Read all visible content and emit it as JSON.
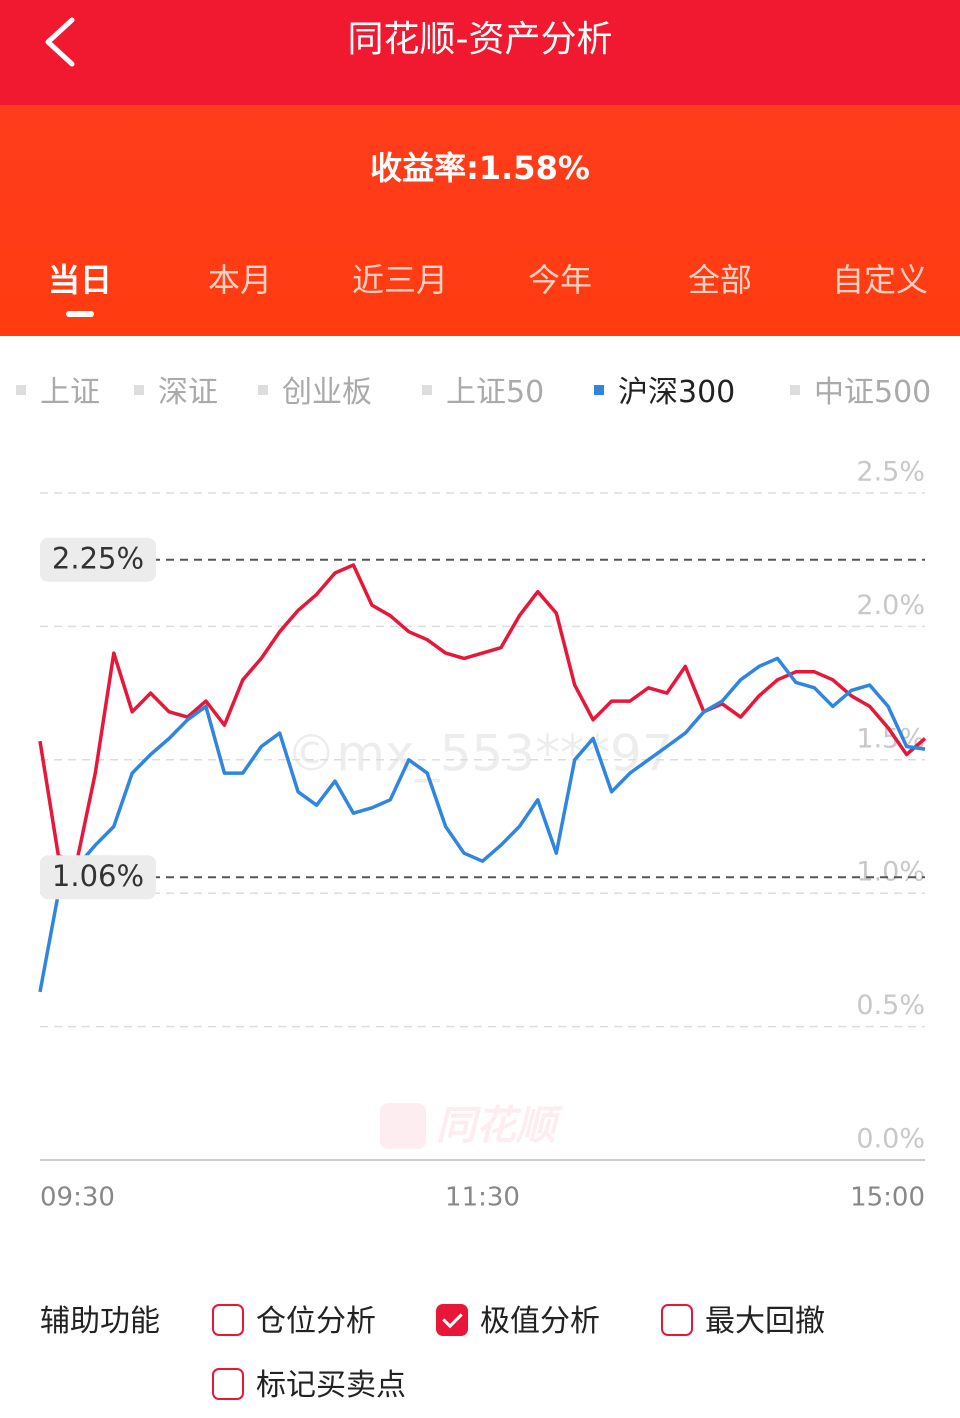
{
  "header": {
    "title": "同花顺-资产分析"
  },
  "summary": {
    "text": "收益率:1.58%"
  },
  "tabs": [
    "当日",
    "本月",
    "近三月",
    "今年",
    "全部",
    "自定义"
  ],
  "indices": [
    "上证",
    "深证",
    "创业板",
    "上证50",
    "沪深300",
    "中证500"
  ],
  "selected_index": 4,
  "chart_data": {
    "type": "line",
    "x": [
      0,
      5,
      10,
      15,
      20,
      25,
      30,
      35,
      40,
      45,
      50,
      55,
      60,
      65,
      70,
      75,
      80,
      85,
      90,
      95,
      100,
      105,
      110,
      115,
      120,
      125,
      130,
      135,
      140,
      145,
      150,
      155,
      160,
      165,
      170,
      175,
      180,
      185,
      190,
      195,
      200,
      205,
      210,
      215,
      220,
      225,
      230,
      235,
      240
    ],
    "xlim": [
      0,
      240
    ],
    "xticks": [
      {
        "value": 0,
        "label": "09:30"
      },
      {
        "value": 120,
        "label": "11:30"
      },
      {
        "value": 240,
        "label": "15:00"
      }
    ],
    "ylim": [
      0,
      2.5
    ],
    "yticks": [
      {
        "value": 0,
        "label": "0.0%"
      },
      {
        "value": 0.5,
        "label": "0.5%"
      },
      {
        "value": 1,
        "label": "1.0%"
      },
      {
        "value": 1.5,
        "label": "1.5%"
      },
      {
        "value": 2,
        "label": "2.0%"
      },
      {
        "value": 2.5,
        "label": "2.5%"
      }
    ],
    "grid": true,
    "series": [
      {
        "color": "#e8173a",
        "values": [
          1.57,
          1.14,
          1.12,
          1.45,
          1.9,
          1.68,
          1.75,
          1.68,
          1.66,
          1.72,
          1.63,
          1.8,
          1.88,
          1.98,
          2.06,
          2.12,
          2.2,
          2.23,
          2.08,
          2.04,
          1.98,
          1.95,
          1.9,
          1.88,
          1.9,
          1.92,
          2.04,
          2.13,
          2.05,
          1.78,
          1.65,
          1.72,
          1.72,
          1.77,
          1.75,
          1.85,
          1.68,
          1.71,
          1.66,
          1.74,
          1.8,
          1.83,
          1.83,
          1.8,
          1.74,
          1.7,
          1.62,
          1.52,
          1.58
        ]
      },
      {
        "color": "#2f86e0",
        "values": [
          0.63,
          1.0,
          1.1,
          1.18,
          1.25,
          1.45,
          1.52,
          1.58,
          1.65,
          1.7,
          1.45,
          1.45,
          1.55,
          1.6,
          1.38,
          1.33,
          1.42,
          1.3,
          1.32,
          1.35,
          1.5,
          1.45,
          1.25,
          1.15,
          1.12,
          1.18,
          1.25,
          1.35,
          1.15,
          1.5,
          1.58,
          1.38,
          1.45,
          1.5,
          1.55,
          1.6,
          1.68,
          1.72,
          1.8,
          1.85,
          1.88,
          1.79,
          1.77,
          1.7,
          1.76,
          1.78,
          1.7,
          1.55,
          1.54
        ]
      }
    ],
    "extremes": [
      {
        "value": 2.25,
        "label": "2.25%"
      },
      {
        "value": 1.06,
        "label": "1.06%"
      }
    ],
    "watermarks": [
      "©mx_553***97",
      "同花顺"
    ]
  },
  "tools": {
    "label": "辅助功能",
    "options": [
      "仓位分析",
      "极值分析",
      "最大回撤",
      "标记买卖点"
    ],
    "checked": [
      false,
      true,
      false,
      false
    ]
  }
}
